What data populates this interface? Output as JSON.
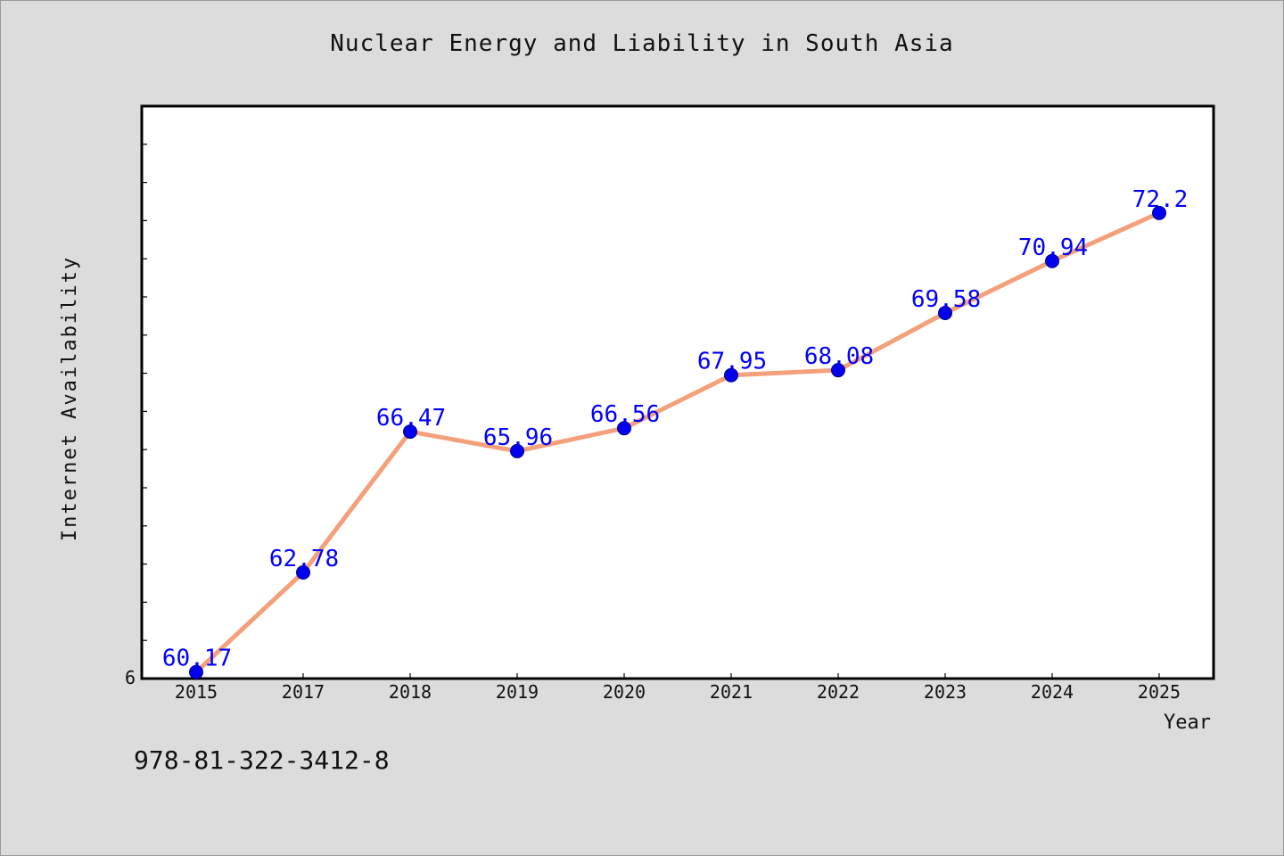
{
  "chart_data": {
    "type": "line",
    "title": "Nuclear Energy and Liability in South Asia",
    "xlabel": "Year",
    "ylabel": "Internet Availability",
    "y_tick_labels": [
      "6"
    ],
    "categories": [
      "2015",
      "2017",
      "2018",
      "2019",
      "2020",
      "2021",
      "2022",
      "2023",
      "2024",
      "2025"
    ],
    "series": [
      {
        "values": [
          60.17,
          62.78,
          66.47,
          65.96,
          66.56,
          67.95,
          68.08,
          69.58,
          70.94,
          72.2
        ],
        "line_color": "#f4a07a",
        "marker_color": "#0000ee",
        "label_color": "#0000ff"
      }
    ],
    "ylim": [
      60,
      75
    ],
    "grid": false,
    "data_labels": true
  },
  "footer": {
    "code": "978-81-322-3412-8"
  },
  "colors": {
    "background": "#dcdcdc",
    "plot_area": "#ffffff",
    "axis": "#000000"
  }
}
